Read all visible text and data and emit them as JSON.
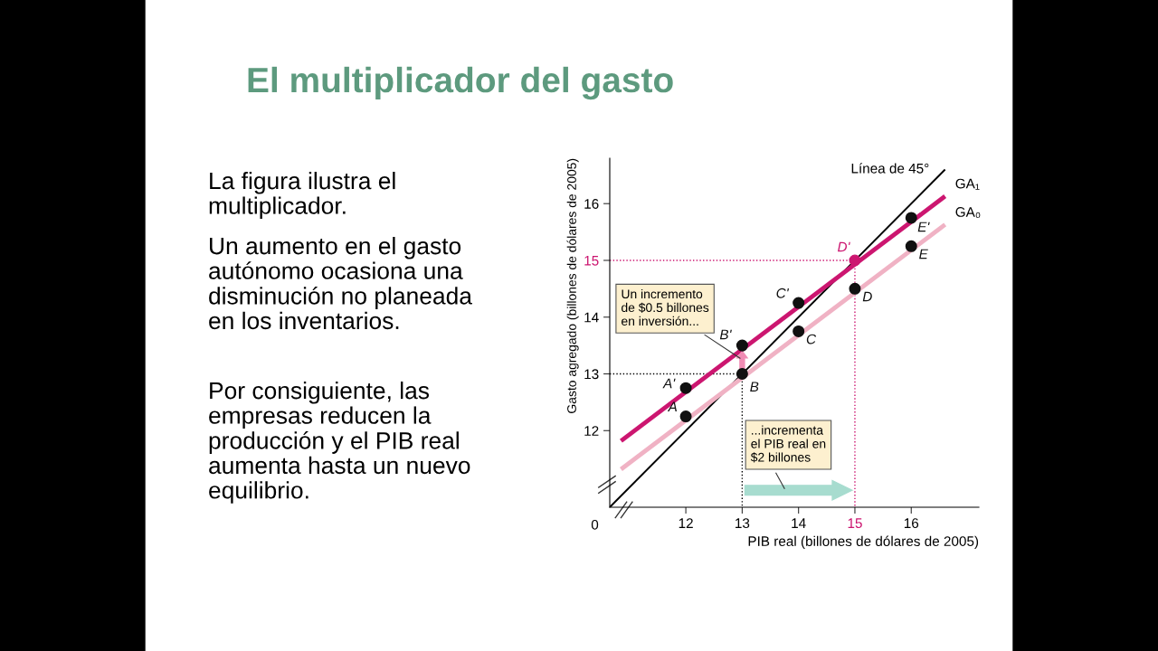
{
  "chart_data": {
    "type": "line",
    "title": "El multiplicador del gasto",
    "xlabel": "PIB real (billones de dólares de 2005)",
    "ylabel": "Gasto agregado (billones de dólares de 2005)",
    "xlim": [
      10.65,
      17.2
    ],
    "ylim": [
      10.65,
      16.8
    ],
    "xticks": [
      12,
      13,
      14,
      15,
      16
    ],
    "yticks": [
      12,
      13,
      14,
      15,
      16
    ],
    "grid": false,
    "legend": false,
    "series": [
      {
        "name": "Línea de 45°",
        "color": "#000000",
        "x": [
          10.65,
          16.6
        ],
        "values": [
          10.65,
          16.6
        ]
      },
      {
        "name": "GA₁",
        "color": "#cc1670",
        "x": [
          10.85,
          16.6
        ],
        "values": [
          11.82,
          16.13
        ]
      },
      {
        "name": "GA₀",
        "color": "#f0b2c4",
        "x": [
          10.85,
          16.6
        ],
        "values": [
          11.32,
          15.63
        ]
      },
      {
        "line_style": "dotted",
        "color": "#000000",
        "x": [
          10.65,
          13,
          13
        ],
        "values": [
          13,
          13,
          10.65
        ]
      },
      {
        "line_style": "dotted",
        "color": "#cc1670",
        "x": [
          10.65,
          15,
          15
        ],
        "values": [
          15,
          15,
          10.65
        ]
      },
      {
        "type": "scatter",
        "marker": "circle",
        "x": [
          12,
          13,
          14,
          15,
          16
        ],
        "values": [
          12.75,
          13.5,
          14.25,
          15,
          15.75
        ],
        "colors": [
          "#111111",
          "#111111",
          "#111111",
          "#cc1670",
          "#111111"
        ],
        "value_labels": [
          "A'",
          "B'",
          "C'",
          "D'",
          "E'"
        ]
      },
      {
        "type": "scatter",
        "marker": "circle",
        "x": [
          12,
          13,
          14,
          15,
          16
        ],
        "values": [
          12.25,
          13,
          13.75,
          14.5,
          15.25
        ],
        "colors": [
          "#111111",
          "#111111",
          "#111111",
          "#111111",
          "#111111"
        ],
        "value_labels": [
          "A",
          "B",
          "C",
          "D",
          "E"
        ]
      }
    ],
    "annotations": [
      {
        "text": "Un incremento\nde $0.5 billones\nen inversión...",
        "x": 13,
        "y": 13.25
      },
      "...incrementa\nel PIB real en\n$2 billones",
      "0",
      "La figura ilustra el\nmultiplicador.",
      "Un aumento en el gasto\nautónomo ocasiona una\ndisminución no planeada\nen los inventarios.",
      "Por consiguiente, las\nempresas reducen la\nproducción y el PIB real\naumenta hasta un nuevo\nequilibrio."
    ]
  }
}
